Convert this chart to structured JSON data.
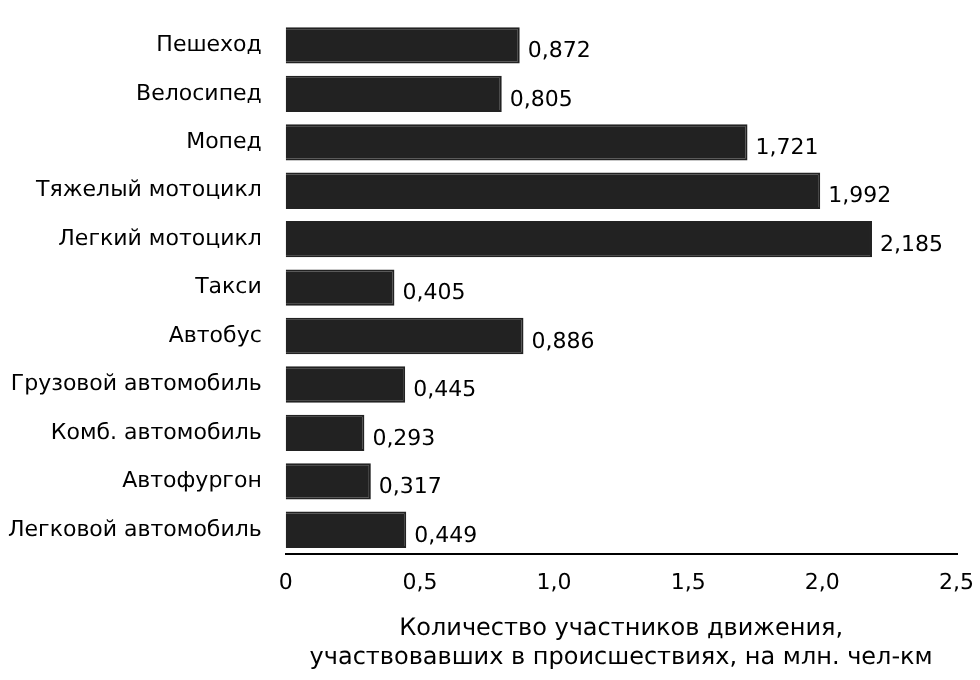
{
  "chart_data": {
    "type": "bar",
    "orientation": "horizontal",
    "categories": [
      "Пешеход",
      "Велосипед",
      "Мопед",
      "Тяжелый мотоцикл",
      "Легкий мотоцикл",
      "Такси",
      "Автобус",
      "Грузовой автомобиль",
      "Комб. автомобиль",
      "Автофургон",
      "Легковой автомобиль"
    ],
    "values": [
      0.872,
      0.805,
      1.721,
      1.992,
      2.185,
      0.405,
      0.886,
      0.445,
      0.293,
      0.317,
      0.449
    ],
    "value_labels": [
      "0,872",
      "0,805",
      "1,721",
      "1,992",
      "2,185",
      "0,405",
      "0,886",
      "0,445",
      "0,293",
      "0,317",
      "0,449"
    ],
    "color": "#222222",
    "xlim": [
      0,
      2.5
    ],
    "xticks": [
      {
        "value": 0,
        "label": "0"
      },
      {
        "value": 0.5,
        "label": "0,5"
      },
      {
        "value": 1,
        "label": "1,0"
      },
      {
        "value": 1.5,
        "label": "1,5"
      },
      {
        "value": 2,
        "label": "2,0"
      },
      {
        "value": 2.5,
        "label": "2,5"
      }
    ],
    "xlabel": "Количество участников движения,\nучаствовавших в происшествиях, на млн. чел-км",
    "grid": false,
    "legend": false
  }
}
